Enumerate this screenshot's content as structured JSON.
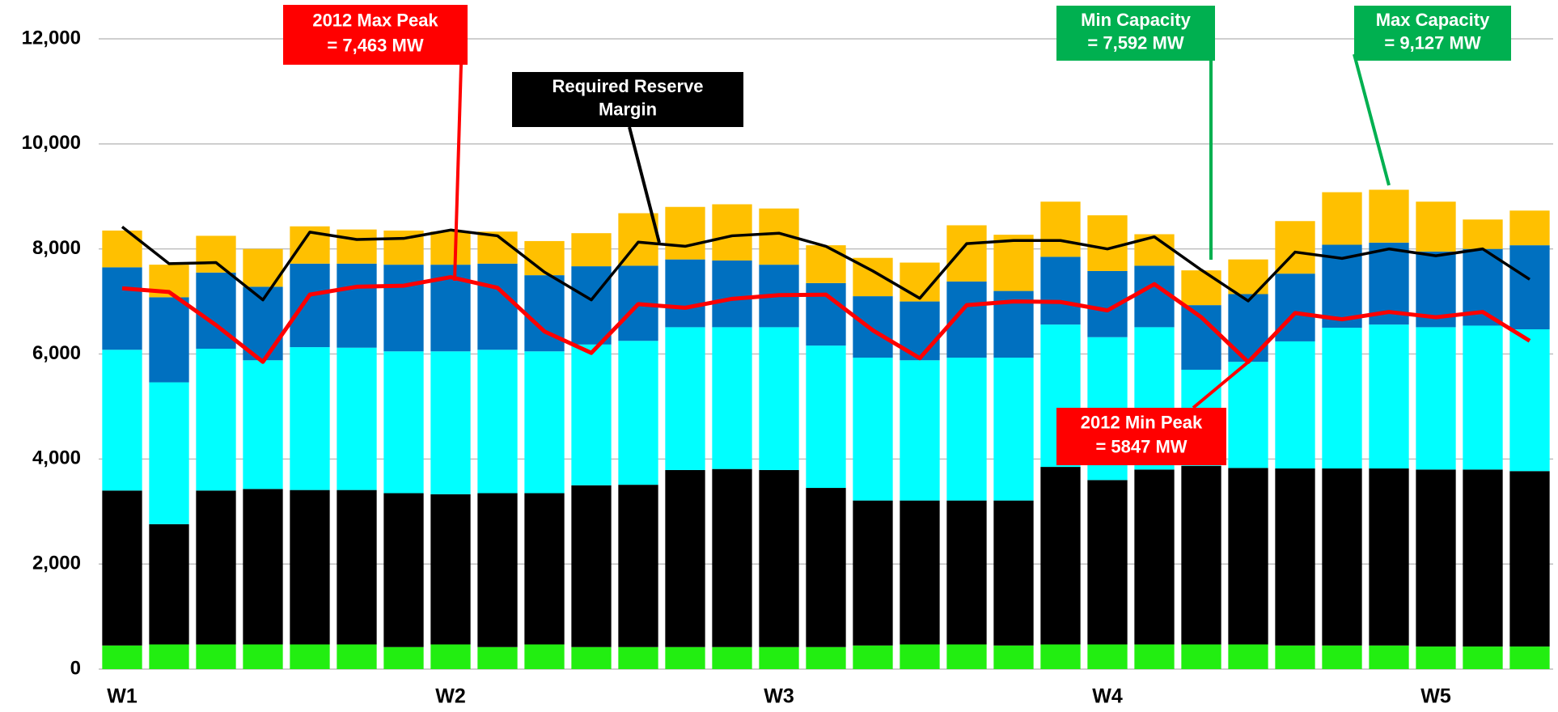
{
  "chart_data": {
    "type": "stacked_bar_line",
    "categories": [
      "W1",
      null,
      null,
      null,
      null,
      null,
      null,
      "W2",
      null,
      null,
      null,
      null,
      null,
      null,
      "W3",
      null,
      null,
      null,
      null,
      null,
      null,
      "W4",
      null,
      null,
      null,
      null,
      null,
      null,
      "W5",
      null,
      null
    ],
    "series": [
      {
        "color": "#22ee11",
        "values": [
          450,
          470,
          470,
          470,
          470,
          470,
          420,
          470,
          420,
          470,
          420,
          420,
          420,
          420,
          420,
          420,
          450,
          470,
          470,
          450,
          470,
          470,
          470,
          470,
          470,
          450,
          450,
          450,
          430,
          430,
          430
        ]
      },
      {
        "color": "#000000",
        "values": [
          2950,
          2290,
          2930,
          2960,
          2940,
          2940,
          2930,
          2860,
          2930,
          2880,
          3080,
          3090,
          3370,
          3390,
          3370,
          3030,
          2760,
          2740,
          2740,
          2760,
          3380,
          3130,
          3330,
          3400,
          3360,
          3370,
          3370,
          3370,
          3370,
          3370,
          3340
        ]
      },
      {
        "color": "#00ffff",
        "values": [
          2680,
          2700,
          2700,
          2450,
          2720,
          2710,
          2700,
          2720,
          2730,
          2700,
          2680,
          2740,
          2720,
          2700,
          2720,
          2710,
          2720,
          2670,
          2720,
          2720,
          2710,
          2720,
          2710,
          1830,
          2020,
          2420,
          2680,
          2740,
          2710,
          2740,
          2700
        ]
      },
      {
        "color": "#0070c0",
        "values": [
          1570,
          1620,
          1450,
          1400,
          1590,
          1600,
          1650,
          1650,
          1640,
          1450,
          1490,
          1430,
          1290,
          1270,
          1190,
          1190,
          1170,
          1120,
          1450,
          1270,
          1290,
          1260,
          1170,
          1230,
          1290,
          1290,
          1580,
          1560,
          1440,
          1460,
          1600
        ]
      },
      {
        "color": "#ffc000",
        "values": [
          700,
          620,
          700,
          720,
          710,
          650,
          650,
          630,
          610,
          650,
          630,
          1000,
          1000,
          1070,
          1070,
          720,
          730,
          740,
          1070,
          1070,
          1050,
          1060,
          600,
          662,
          660,
          1000,
          1000,
          1007,
          950,
          560,
          660
        ]
      }
    ],
    "lines": [
      {
        "color": "#ff0000",
        "values": [
          7250,
          7180,
          6550,
          5850,
          7130,
          7280,
          7300,
          7463,
          7260,
          6430,
          6020,
          6950,
          6880,
          7050,
          7120,
          7130,
          6450,
          5920,
          6930,
          7000,
          6990,
          6830,
          7330,
          6700,
          5847,
          6780,
          6660,
          6800,
          6700,
          6800,
          6250
        ]
      },
      {
        "color": "#000000",
        "values": [
          8420,
          7720,
          7740,
          7030,
          8320,
          8180,
          8200,
          8360,
          8250,
          7560,
          7030,
          8130,
          8050,
          8250,
          8300,
          8050,
          7580,
          7060,
          8100,
          8160,
          8160,
          8000,
          8230,
          7600,
          7010,
          7940,
          7820,
          8000,
          7870,
          8000,
          7420
        ]
      }
    ],
    "ylim": [
      0,
      12000
    ],
    "yticks": [
      0,
      {
        "value": 2000,
        "label": "2,000"
      },
      {
        "value": 4000,
        "label": "4,000"
      },
      {
        "value": 6000,
        "label": "6,000"
      },
      {
        "value": 8000,
        "label": "8,000"
      },
      {
        "value": 10000,
        "label": "10,000"
      },
      {
        "value": 12000,
        "label": "12,000"
      }
    ],
    "grid": true,
    "annotations": [
      {
        "lines": [
          "2012 Max Peak",
          "= 7,463 MW"
        ],
        "color": "#ff0000"
      },
      {
        "lines": [
          "Required Reserve",
          "Margin"
        ],
        "color": "#000000"
      },
      {
        "lines": [
          "Min Capacity",
          "= 7,592 MW"
        ],
        "color": "#00b050"
      },
      {
        "lines": [
          "Max Capacity",
          "= 9,127 MW"
        ],
        "color": "#00b050"
      },
      {
        "lines": [
          "2012 Min Peak",
          "= 5847 MW"
        ],
        "color": "#ff0000"
      }
    ]
  }
}
